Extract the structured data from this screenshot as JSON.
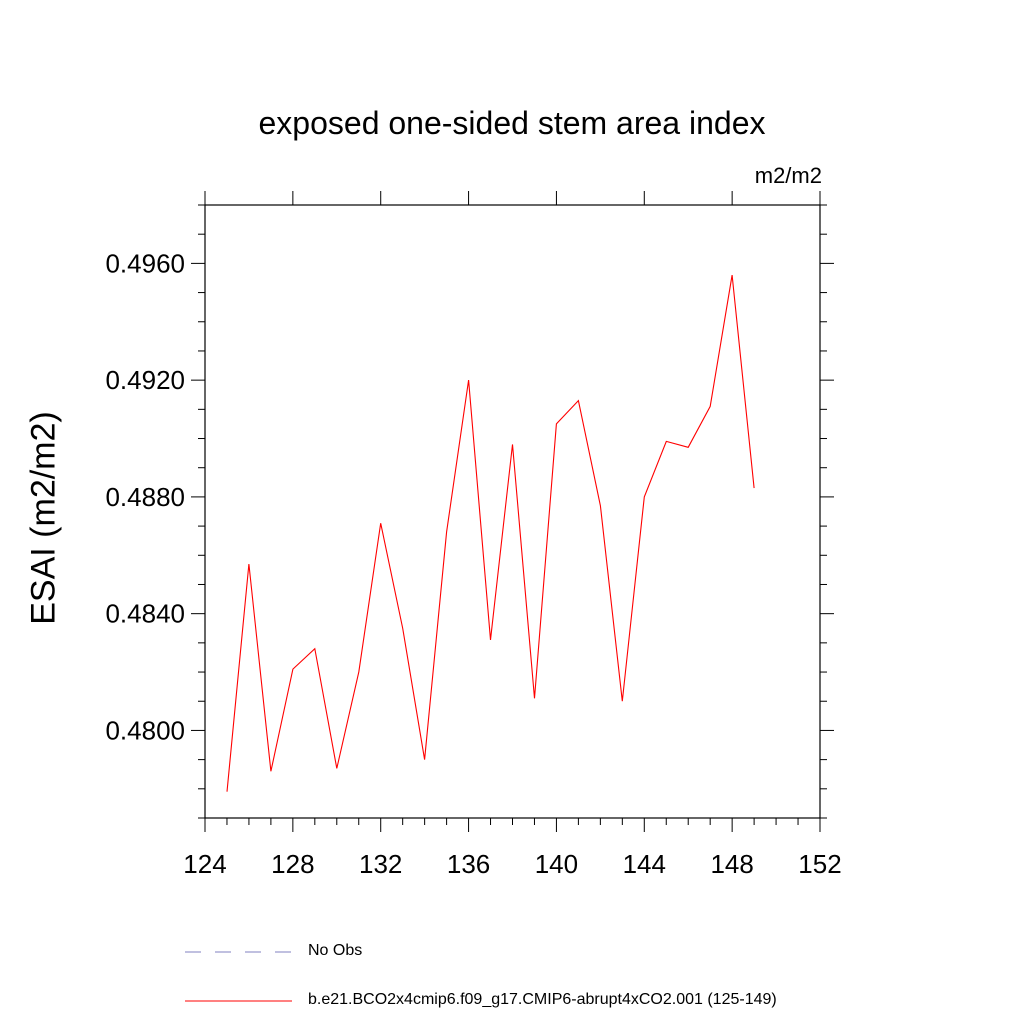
{
  "chart_data": {
    "type": "line",
    "title": "exposed one-sided stem area index",
    "units": "m2/m2",
    "xlabel": "",
    "ylabel": "ESAI  (m2/m2)",
    "xlim": [
      124,
      152
    ],
    "ylim": [
      0.477,
      0.498
    ],
    "xticks": [
      124,
      128,
      132,
      136,
      140,
      144,
      148,
      152
    ],
    "yticks": [
      0.48,
      0.484,
      0.488,
      0.492,
      0.496
    ],
    "ytick_labels": [
      "0.4800",
      "0.4840",
      "0.4880",
      "0.4920",
      "0.4960"
    ],
    "series": [
      {
        "name": "b.e21.BCO2x4cmip6.f09_g17.CMIP6-abrupt4xCO2.001 (125-149)",
        "color": "#ff0000",
        "x": [
          125,
          126,
          127,
          128,
          129,
          130,
          131,
          132,
          133,
          134,
          135,
          136,
          137,
          138,
          139,
          140,
          141,
          142,
          143,
          144,
          145,
          146,
          147,
          148,
          149
        ],
        "values": [
          0.4779,
          0.4857,
          0.4786,
          0.4821,
          0.4828,
          0.4787,
          0.482,
          0.4871,
          0.4835,
          0.479,
          0.4868,
          0.492,
          0.4831,
          0.4898,
          0.4811,
          0.4905,
          0.4913,
          0.4877,
          0.481,
          0.488,
          0.4899,
          0.4897,
          0.4911,
          0.4956,
          0.4883
        ]
      }
    ],
    "legend": [
      {
        "label": "No Obs",
        "color": "#8080c0",
        "style": "dashed"
      },
      {
        "label": "b.e21.BCO2x4cmip6.f09_g17.CMIP6-abrupt4xCO2.001 (125-149)",
        "color": "#ff0000",
        "style": "solid"
      }
    ]
  }
}
